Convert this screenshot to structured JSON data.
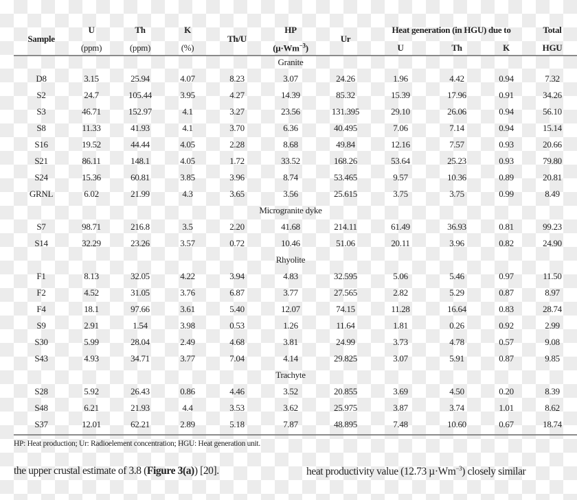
{
  "header": {
    "sample": "Sample",
    "u": "U",
    "u_unit": "(ppm)",
    "th": "Th",
    "th_unit": "(ppm)",
    "k": "K",
    "k_unit": "(%)",
    "thu": "Th/U",
    "hp": "HP",
    "hp_unit_base": "(µ·Wm",
    "hp_unit_exp": "−3",
    "hp_unit_close": ")",
    "ur": "Ur",
    "heat_group": "Heat generation (in HGU) due to",
    "heat_u": "U",
    "heat_th": "Th",
    "heat_k": "K",
    "total": "Total",
    "total_unit": "HGU"
  },
  "groups": [
    {
      "name": "Granite",
      "rows": [
        [
          "D8",
          "3.15",
          "25.94",
          "4.07",
          "8.23",
          "3.07",
          "24.26",
          "1.96",
          "4.42",
          "0.94",
          "7.32"
        ],
        [
          "S2",
          "24.7",
          "105.44",
          "3.95",
          "4.27",
          "14.39",
          "85.32",
          "15.39",
          "17.96",
          "0.91",
          "34.26"
        ],
        [
          "S3",
          "46.71",
          "152.97",
          "4.1",
          "3.27",
          "23.56",
          "131.395",
          "29.10",
          "26.06",
          "0.94",
          "56.10"
        ],
        [
          "S8",
          "11.33",
          "41.93",
          "4.1",
          "3.70",
          "6.36",
          "40.495",
          "7.06",
          "7.14",
          "0.94",
          "15.14"
        ],
        [
          "S16",
          "19.52",
          "44.44",
          "4.05",
          "2.28",
          "8.68",
          "49.84",
          "12.16",
          "7.57",
          "0.93",
          "20.66"
        ],
        [
          "S21",
          "86.11",
          "148.1",
          "4.05",
          "1.72",
          "33.52",
          "168.26",
          "53.64",
          "25.23",
          "0.93",
          "79.80"
        ],
        [
          "S24",
          "15.36",
          "60.81",
          "3.85",
          "3.96",
          "8.74",
          "53.465",
          "9.57",
          "10.36",
          "0.89",
          "20.81"
        ],
        [
          "GRNL",
          "6.02",
          "21.99",
          "4.3",
          "3.65",
          "3.56",
          "25.615",
          "3.75",
          "3.75",
          "0.99",
          "8.49"
        ]
      ]
    },
    {
      "name": "Microgranite dyke",
      "rows": [
        [
          "S7",
          "98.71",
          "216.8",
          "3.5",
          "2.20",
          "41.68",
          "214.11",
          "61.49",
          "36.93",
          "0.81",
          "99.23"
        ],
        [
          "S14",
          "32.29",
          "23.26",
          "3.57",
          "0.72",
          "10.46",
          "51.06",
          "20.11",
          "3.96",
          "0.82",
          "24.90"
        ]
      ]
    },
    {
      "name": "Rhyolite",
      "rows": [
        [
          "F1",
          "8.13",
          "32.05",
          "4.22",
          "3.94",
          "4.83",
          "32.595",
          "5.06",
          "5.46",
          "0.97",
          "11.50"
        ],
        [
          "F2",
          "4.52",
          "31.05",
          "3.76",
          "6.87",
          "3.77",
          "27.565",
          "2.82",
          "5.29",
          "0.87",
          "8.97"
        ],
        [
          "F4",
          "18.1",
          "97.66",
          "3.61",
          "5.40",
          "12.07",
          "74.15",
          "11.28",
          "16.64",
          "0.83",
          "28.74"
        ],
        [
          "S9",
          "2.91",
          "1.54",
          "3.98",
          "0.53",
          "1.26",
          "11.64",
          "1.81",
          "0.26",
          "0.92",
          "2.99"
        ],
        [
          "S30",
          "5.99",
          "28.04",
          "2.49",
          "4.68",
          "3.81",
          "24.99",
          "3.73",
          "4.78",
          "0.57",
          "9.08"
        ],
        [
          "S43",
          "4.93",
          "34.71",
          "3.77",
          "7.04",
          "4.14",
          "29.825",
          "3.07",
          "5.91",
          "0.87",
          "9.85"
        ]
      ]
    },
    {
      "name": "Trachyte",
      "rows": [
        [
          "S28",
          "5.92",
          "26.43",
          "0.86",
          "4.46",
          "3.52",
          "20.855",
          "3.69",
          "4.50",
          "0.20",
          "8.39"
        ],
        [
          "S48",
          "6.21",
          "21.93",
          "4.4",
          "3.53",
          "3.62",
          "25.975",
          "3.87",
          "3.74",
          "1.01",
          "8.62"
        ],
        [
          "S37",
          "12.01",
          "62.21",
          "2.89",
          "5.18",
          "7.87",
          "48.895",
          "7.48",
          "10.60",
          "0.67",
          "18.74"
        ]
      ]
    }
  ],
  "footnote": "HP: Heat production; Ur: Radioelement concentration; HGU: Heat generation unit.",
  "body_left": {
    "pre": "the upper crustal estimate of 3.8 (",
    "bold": "Figure 3(a)",
    "post": ") [20]."
  },
  "body_right": {
    "pre": "heat productivity value (12.73 µ·Wm",
    "exp": "−3",
    "post": ") closely similar"
  }
}
